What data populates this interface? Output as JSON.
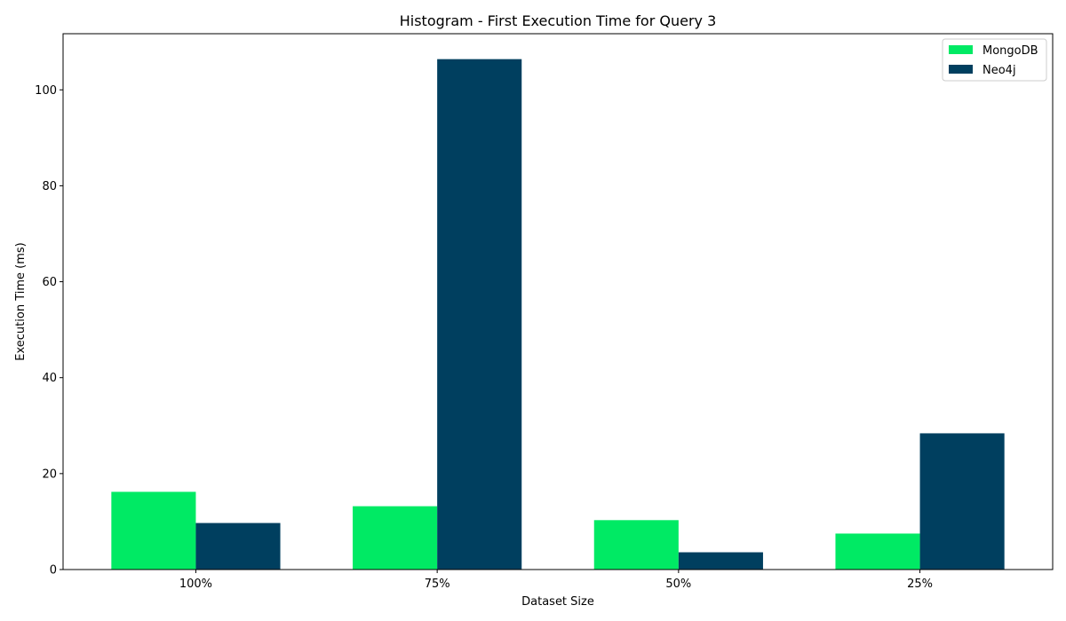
{
  "chart_data": {
    "type": "bar",
    "title": "Histogram - First Execution Time for Query 3",
    "xlabel": "Dataset Size",
    "ylabel": "Execution Time (ms)",
    "categories": [
      "100%",
      "75%",
      "50%",
      "25%"
    ],
    "series": [
      {
        "name": "MongoDB",
        "values": [
          16.2,
          13.2,
          10.3,
          7.5
        ],
        "color": "#00ea64"
      },
      {
        "name": "Neo4j",
        "values": [
          9.7,
          106.4,
          3.6,
          28.4
        ],
        "color": "#003f5f"
      }
    ],
    "ylim": [
      0,
      111.7
    ],
    "yticks": [
      0,
      20,
      40,
      60,
      80,
      100
    ],
    "grid": false,
    "legend": "top-right"
  }
}
